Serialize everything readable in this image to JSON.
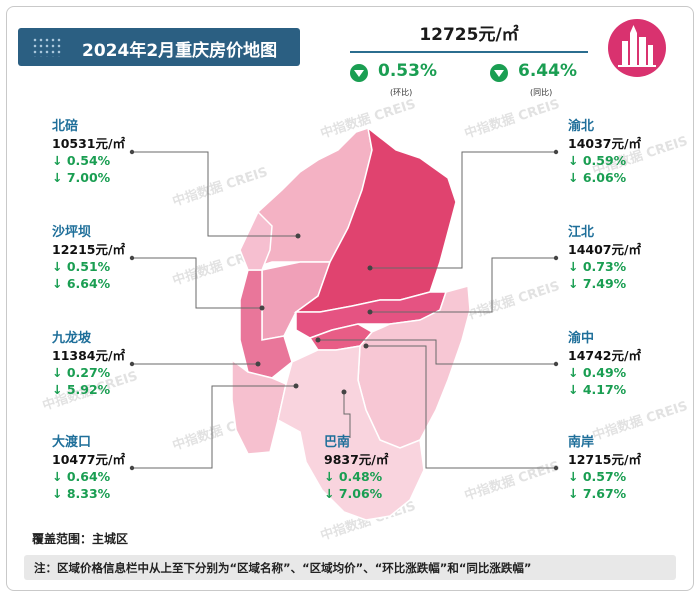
{
  "title": "2024年2月重庆房价地图",
  "overall": {
    "price": "12725元/㎡",
    "mom_value": "0.53%",
    "mom_label": "(环比)",
    "yoy_value": "6.44%",
    "yoy_label": "(同比)"
  },
  "watermark": "中指数据 CREIS",
  "districts": [
    {
      "name": "北碚",
      "price": "10531元/㎡",
      "mom": "↓ 0.54%",
      "yoy": "↓ 7.00%"
    },
    {
      "name": "沙坪坝",
      "price": "12215元/㎡",
      "mom": "↓ 0.51%",
      "yoy": "↓ 6.64%"
    },
    {
      "name": "九龙坡",
      "price": "11384元/㎡",
      "mom": "↓ 0.27%",
      "yoy": "↓ 5.92%"
    },
    {
      "name": "大渡口",
      "price": "10477元/㎡",
      "mom": "↓ 0.64%",
      "yoy": "↓ 8.33%"
    },
    {
      "name": "巴南",
      "price": "9837元/㎡",
      "mom": "↓ 0.48%",
      "yoy": "↓ 7.06%"
    },
    {
      "name": "渝北",
      "price": "14037元/㎡",
      "mom": "↓ 0.59%",
      "yoy": "↓ 6.06%"
    },
    {
      "name": "江北",
      "price": "14407元/㎡",
      "mom": "↓ 0.73%",
      "yoy": "↓ 7.49%"
    },
    {
      "name": "渝中",
      "price": "14742元/㎡",
      "mom": "↓ 0.49%",
      "yoy": "↓ 4.17%"
    },
    {
      "name": "南岸",
      "price": "12715元/㎡",
      "mom": "↓ 0.57%",
      "yoy": "↓ 7.67%"
    }
  ],
  "coverage": "覆盖范围：主城区",
  "note": "注：区域价格信息栏中从上至下分别为“区域名称”、“区域均价”、“环比涨跌幅”和“同比涨跌幅”",
  "colors": {
    "title_bg": "#2b5f82",
    "district_name": "#1f6f9a",
    "down_green": "#1a9e52",
    "map_dark": "#e0436f",
    "map_mid": "#ec89a6",
    "map_light": "#f6c0cf",
    "logo": "#d9326f"
  }
}
